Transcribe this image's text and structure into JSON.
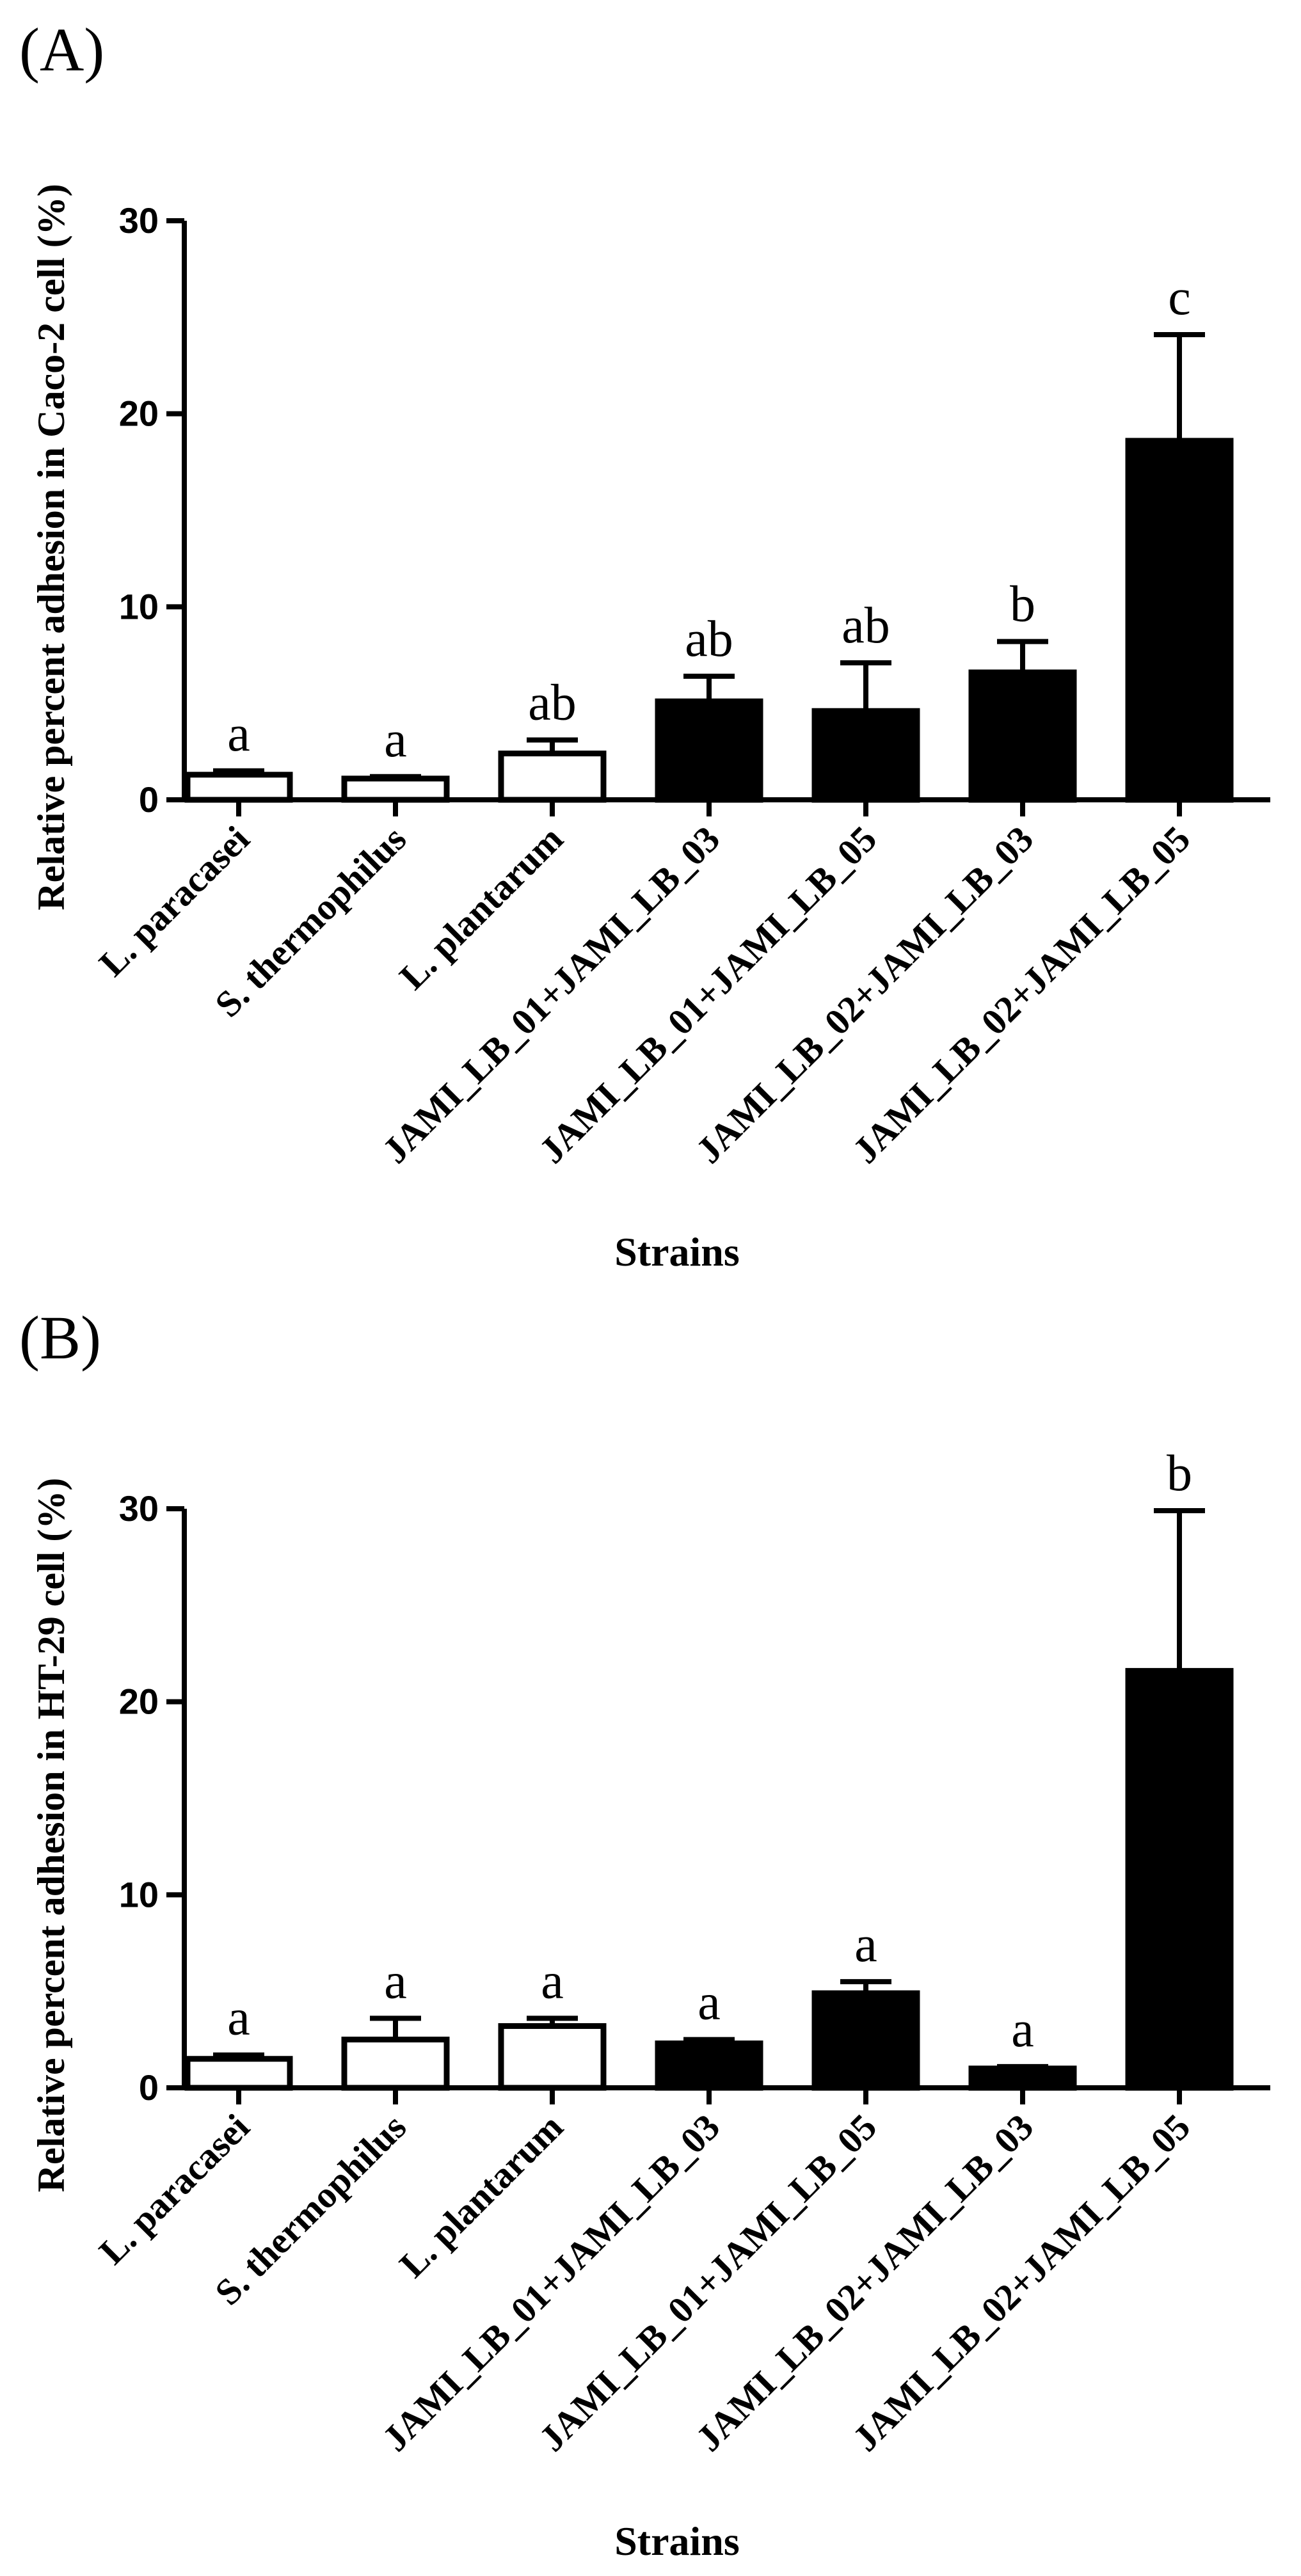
{
  "chart_data": [
    {
      "type": "bar",
      "panel_label": "(A)",
      "title": "",
      "xlabel": "Strains",
      "ylabel": "Relative percent adhesion in Caco-2 cell (%)",
      "ylim": [
        0,
        30
      ],
      "yticks": [
        0,
        10,
        20,
        30
      ],
      "categories": [
        "L. paracasei",
        "S. thermophilus",
        "L. plantarum",
        "JAMI_LB_01+JAMI_LB_03",
        "JAMI_LB_01+JAMI_LB_05",
        "JAMI_LB_02+JAMI_LB_03",
        "JAMI_LB_02+JAMI_LB_05"
      ],
      "values": [
        1.3,
        1.1,
        2.4,
        5.1,
        4.6,
        6.6,
        18.6
      ],
      "errors": [
        0.2,
        0.1,
        0.7,
        1.3,
        2.5,
        1.6,
        5.5
      ],
      "fills": [
        "#ffffff",
        "#ffffff",
        "#ffffff",
        "#000000",
        "#000000",
        "#000000",
        "#000000"
      ],
      "significance": [
        "a",
        "a",
        "ab",
        "ab",
        "ab",
        "b",
        "c"
      ],
      "grid": false,
      "legend": "none"
    },
    {
      "type": "bar",
      "panel_label": "(B)",
      "title": "",
      "xlabel": "Strains",
      "ylabel": "Relative percent adhesion in HT-29 cell (%)",
      "ylim": [
        0,
        30
      ],
      "yticks": [
        0,
        10,
        20,
        30
      ],
      "categories": [
        "L. paracasei",
        "S. thermophilus",
        "L. plantarum",
        "JAMI_LB_01+JAMI_LB_03",
        "JAMI_LB_01+JAMI_LB_05",
        "JAMI_LB_02+JAMI_LB_03",
        "JAMI_LB_02+JAMI_LB_05"
      ],
      "values": [
        1.5,
        2.5,
        3.2,
        2.3,
        4.9,
        1.0,
        21.6
      ],
      "errors": [
        0.2,
        1.1,
        0.4,
        0.2,
        0.6,
        0.1,
        8.3
      ],
      "fills": [
        "#ffffff",
        "#ffffff",
        "#ffffff",
        "#000000",
        "#000000",
        "#000000",
        "#000000"
      ],
      "significance": [
        "a",
        "a",
        "a",
        "a",
        "a",
        "a",
        "b"
      ],
      "grid": false,
      "legend": "none"
    }
  ]
}
